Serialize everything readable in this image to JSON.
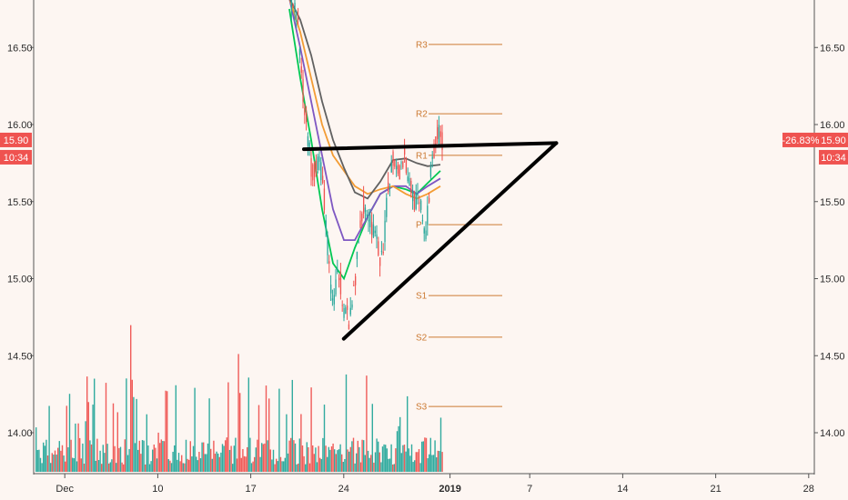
{
  "chart_data": {
    "type": "candlestick",
    "price_axis": {
      "range": [
        13.75,
        16.8
      ],
      "ticks": [
        "14.00",
        "14.50",
        "15.00",
        "15.50",
        "16.00",
        "16.50"
      ],
      "current_price": "15.90",
      "time_to_close": "10:34",
      "change_pct": "-26.83%"
    },
    "date_axis": {
      "labels": [
        "Dec",
        "10",
        "17",
        "24",
        "2019",
        "7",
        "14",
        "21",
        "28"
      ],
      "bold_label": "2019"
    },
    "pivot_levels": [
      {
        "name": "R3",
        "value": 16.52
      },
      {
        "name": "R2",
        "value": 16.07
      },
      {
        "name": "R1",
        "value": 15.8
      },
      {
        "name": "P",
        "value": 15.35
      },
      {
        "name": "S1",
        "value": 14.89
      },
      {
        "name": "S2",
        "value": 14.62
      },
      {
        "name": "S3",
        "value": 14.17
      }
    ],
    "trendlines": [
      {
        "style": "black-thick",
        "from": [
          "2018-12-21",
          15.84
        ],
        "to": [
          "2019-01-09",
          15.88
        ]
      },
      {
        "style": "black-thick",
        "from": [
          "2018-12-24",
          14.61
        ],
        "to": [
          "2019-01-09",
          15.88
        ]
      }
    ],
    "moving_averages": [
      {
        "color": "#00c853",
        "values": [
          16.75,
          16.3,
          15.9,
          15.45,
          15.1,
          15.0,
          15.2,
          15.4,
          15.55,
          15.6,
          15.58,
          15.55,
          15.62,
          15.7
        ]
      },
      {
        "color": "#7e57c2",
        "values": [
          16.82,
          16.5,
          16.15,
          15.8,
          15.45,
          15.25,
          15.25,
          15.4,
          15.55,
          15.6,
          15.6,
          15.55,
          15.6,
          15.65
        ]
      },
      {
        "color": "#f39c34",
        "values": [
          16.82,
          16.6,
          16.3,
          16.0,
          15.8,
          15.7,
          15.6,
          15.55,
          15.58,
          15.6,
          15.55,
          15.52,
          15.55,
          15.6
        ]
      },
      {
        "color": "#616161",
        "values": [
          16.82,
          16.68,
          16.45,
          16.15,
          15.9,
          15.72,
          15.56,
          15.52,
          15.63,
          15.77,
          15.78,
          15.75,
          15.73,
          15.74
        ]
      }
    ],
    "colors": {
      "up": "#26a69a",
      "down": "#ef5350",
      "badge": "#ef5350",
      "pivot": "#cc7a33",
      "trendline": "#000000"
    }
  }
}
